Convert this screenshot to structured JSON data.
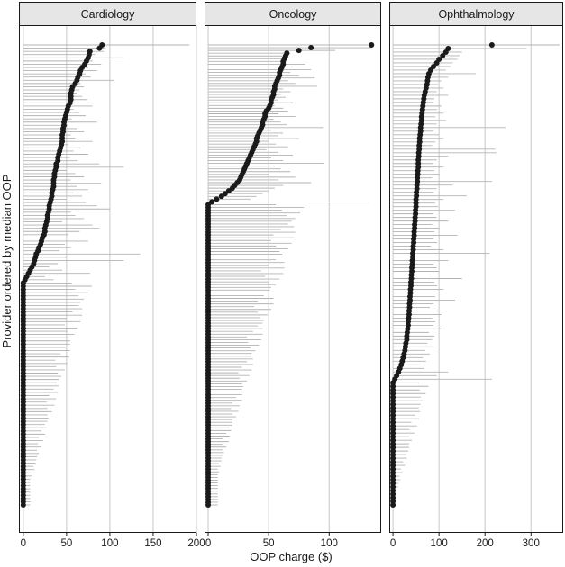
{
  "chart_data": {
    "type": "scatter",
    "ylabel": "Provider ordered by median OOP",
    "xlabel": "OOP charge ($)",
    "grid": true,
    "panels": [
      {
        "title": "Cardiology",
        "xlim": [
          -5,
          200
        ],
        "xticks": [
          0,
          50,
          100,
          150,
          200
        ],
        "n_zero": 70,
        "points": [
          {
            "median": 91,
            "max": 192
          },
          {
            "median": 88,
            "max": 95
          },
          {
            "median": 77,
            "max": 93
          },
          {
            "median": 76,
            "max": 83
          },
          {
            "median": 75,
            "max": 115
          },
          {
            "median": 73,
            "max": 80
          },
          {
            "median": 71,
            "max": 90
          },
          {
            "median": 68,
            "max": 75
          },
          {
            "median": 66,
            "max": 85
          },
          {
            "median": 65,
            "max": 72
          },
          {
            "median": 63,
            "max": 78
          },
          {
            "median": 62,
            "max": 105
          },
          {
            "median": 60,
            "max": 66
          },
          {
            "median": 57,
            "max": 70
          },
          {
            "median": 56,
            "max": 65
          },
          {
            "median": 55,
            "max": 62
          },
          {
            "median": 55,
            "max": 68
          },
          {
            "median": 55,
            "max": 74
          },
          {
            "median": 54,
            "max": 60
          },
          {
            "median": 52,
            "max": 80
          },
          {
            "median": 51,
            "max": 58
          },
          {
            "median": 50,
            "max": 65
          },
          {
            "median": 49,
            "max": 72
          },
          {
            "median": 48,
            "max": 56
          },
          {
            "median": 47,
            "max": 85
          },
          {
            "median": 47,
            "max": 52
          },
          {
            "median": 46,
            "max": 62
          },
          {
            "median": 46,
            "max": 70
          },
          {
            "median": 45,
            "max": 55
          },
          {
            "median": 45,
            "max": 60
          },
          {
            "median": 45,
            "max": 80
          },
          {
            "median": 44,
            "max": 52
          },
          {
            "median": 43,
            "max": 66
          },
          {
            "median": 42,
            "max": 58
          },
          {
            "median": 41,
            "max": 75
          },
          {
            "median": 40,
            "max": 54
          },
          {
            "median": 40,
            "max": 63
          },
          {
            "median": 38,
            "max": 88
          },
          {
            "median": 38,
            "max": 116
          },
          {
            "median": 37,
            "max": 50
          },
          {
            "median": 36,
            "max": 60
          },
          {
            "median": 36,
            "max": 70
          },
          {
            "median": 35,
            "max": 55
          },
          {
            "median": 35,
            "max": 90
          },
          {
            "median": 35,
            "max": 62
          },
          {
            "median": 34,
            "max": 75
          },
          {
            "median": 33,
            "max": 58
          },
          {
            "median": 33,
            "max": 68
          },
          {
            "median": 32,
            "max": 50
          },
          {
            "median": 31,
            "max": 72
          },
          {
            "median": 30,
            "max": 85
          },
          {
            "median": 30,
            "max": 100
          },
          {
            "median": 29,
            "max": 55
          },
          {
            "median": 28,
            "max": 60
          },
          {
            "median": 28,
            "max": 70
          },
          {
            "median": 27,
            "max": 45
          },
          {
            "median": 26,
            "max": 80
          },
          {
            "median": 25,
            "max": 88
          },
          {
            "median": 25,
            "max": 65
          },
          {
            "median": 24,
            "max": 52
          },
          {
            "median": 22,
            "max": 60
          },
          {
            "median": 21,
            "max": 75
          },
          {
            "median": 20,
            "max": 48
          },
          {
            "median": 18,
            "max": 55
          },
          {
            "median": 17,
            "max": 42
          },
          {
            "median": 15,
            "max": 135
          },
          {
            "median": 14,
            "max": 50
          },
          {
            "median": 13,
            "max": 116
          },
          {
            "median": 12,
            "max": 40
          },
          {
            "median": 10,
            "max": 30
          },
          {
            "median": 8,
            "max": 45
          },
          {
            "median": 6,
            "max": 77
          },
          {
            "median": 4,
            "max": 25
          },
          {
            "median": 2,
            "max": 35
          }
        ]
      },
      {
        "title": "Oncology",
        "xlim": [
          -3,
          143
        ],
        "xticks": [
          0,
          50,
          100
        ],
        "n_zero": 110,
        "points": [
          {
            "median": 135,
            "max": 135
          },
          {
            "median": 85,
            "max": 135
          },
          {
            "median": 75,
            "max": 105
          },
          {
            "median": 65,
            "max": 68
          },
          {
            "median": 64,
            "max": 66
          },
          {
            "median": 63,
            "max": 65
          },
          {
            "median": 62,
            "max": 64
          },
          {
            "median": 62,
            "max": 80
          },
          {
            "median": 61,
            "max": 70
          },
          {
            "median": 60,
            "max": 85
          },
          {
            "median": 59,
            "max": 68
          },
          {
            "median": 59,
            "max": 75
          },
          {
            "median": 58,
            "max": 88
          },
          {
            "median": 57,
            "max": 66
          },
          {
            "median": 56,
            "max": 72
          },
          {
            "median": 55,
            "max": 90
          },
          {
            "median": 55,
            "max": 62
          },
          {
            "median": 54,
            "max": 68
          },
          {
            "median": 54,
            "max": 60
          },
          {
            "median": 53,
            "max": 64
          },
          {
            "median": 52,
            "max": 58
          },
          {
            "median": 52,
            "max": 70
          },
          {
            "median": 51,
            "max": 55
          },
          {
            "median": 50,
            "max": 62
          },
          {
            "median": 48,
            "max": 66
          },
          {
            "median": 47,
            "max": 58
          },
          {
            "median": 47,
            "max": 72
          },
          {
            "median": 46,
            "max": 54
          },
          {
            "median": 45,
            "max": 60
          },
          {
            "median": 45,
            "max": 65
          },
          {
            "median": 44,
            "max": 95
          },
          {
            "median": 43,
            "max": 52
          },
          {
            "median": 42,
            "max": 62
          },
          {
            "median": 41,
            "max": 58
          },
          {
            "median": 40,
            "max": 75
          },
          {
            "median": 40,
            "max": 50
          },
          {
            "median": 39,
            "max": 56
          },
          {
            "median": 38,
            "max": 66
          },
          {
            "median": 37,
            "max": 48
          },
          {
            "median": 36,
            "max": 58
          },
          {
            "median": 35,
            "max": 70
          },
          {
            "median": 34,
            "max": 52
          },
          {
            "median": 33,
            "max": 62
          },
          {
            "median": 32,
            "max": 96
          },
          {
            "median": 31,
            "max": 55
          },
          {
            "median": 30,
            "max": 60
          },
          {
            "median": 29,
            "max": 68
          },
          {
            "median": 28,
            "max": 50
          },
          {
            "median": 27,
            "max": 72
          },
          {
            "median": 26,
            "max": 58
          },
          {
            "median": 24,
            "max": 85
          },
          {
            "median": 22,
            "max": 62
          },
          {
            "median": 20,
            "max": 55
          },
          {
            "median": 17,
            "max": 50
          },
          {
            "median": 14,
            "max": 45
          },
          {
            "median": 11,
            "max": 40
          },
          {
            "median": 7,
            "max": 35
          },
          {
            "median": 3,
            "max": 132
          }
        ]
      },
      {
        "title": "Ophthalmology",
        "xlim": [
          -8,
          370
        ],
        "xticks": [
          0,
          100,
          200,
          300
        ],
        "n_zero": 35,
        "points": [
          {
            "median": 215,
            "max": 362
          },
          {
            "median": 120,
            "max": 290
          },
          {
            "median": 115,
            "max": 150
          },
          {
            "median": 108,
            "max": 145
          },
          {
            "median": 100,
            "max": 140
          },
          {
            "median": 95,
            "max": 130
          },
          {
            "median": 88,
            "max": 125
          },
          {
            "median": 82,
            "max": 115
          },
          {
            "median": 78,
            "max": 180
          },
          {
            "median": 76,
            "max": 120
          },
          {
            "median": 75,
            "max": 105
          },
          {
            "median": 74,
            "max": 98
          },
          {
            "median": 72,
            "max": 110
          },
          {
            "median": 70,
            "max": 95
          },
          {
            "median": 68,
            "max": 120
          },
          {
            "median": 67,
            "max": 90
          },
          {
            "median": 66,
            "max": 88
          },
          {
            "median": 65,
            "max": 105
          },
          {
            "median": 64,
            "max": 96
          },
          {
            "median": 63,
            "max": 110
          },
          {
            "median": 62,
            "max": 92
          },
          {
            "median": 62,
            "max": 115
          },
          {
            "median": 61,
            "max": 95
          },
          {
            "median": 60,
            "max": 245
          },
          {
            "median": 60,
            "max": 88
          },
          {
            "median": 59,
            "max": 100
          },
          {
            "median": 58,
            "max": 110
          },
          {
            "median": 58,
            "max": 92
          },
          {
            "median": 57,
            "max": 85
          },
          {
            "median": 57,
            "max": 222
          },
          {
            "median": 56,
            "max": 225
          },
          {
            "median": 56,
            "max": 120
          },
          {
            "median": 55,
            "max": 95
          },
          {
            "median": 55,
            "max": 88
          },
          {
            "median": 55,
            "max": 110
          },
          {
            "median": 54,
            "max": 90
          },
          {
            "median": 54,
            "max": 100
          },
          {
            "median": 53,
            "max": 85
          },
          {
            "median": 53,
            "max": 215
          },
          {
            "median": 52,
            "max": 130
          },
          {
            "median": 52,
            "max": 95
          },
          {
            "median": 51,
            "max": 88
          },
          {
            "median": 51,
            "max": 160
          },
          {
            "median": 50,
            "max": 110
          },
          {
            "median": 50,
            "max": 92
          },
          {
            "median": 50,
            "max": 98
          },
          {
            "median": 49,
            "max": 135
          },
          {
            "median": 49,
            "max": 88
          },
          {
            "median": 48,
            "max": 95
          },
          {
            "median": 48,
            "max": 120
          },
          {
            "median": 47,
            "max": 85
          },
          {
            "median": 47,
            "max": 100
          },
          {
            "median": 46,
            "max": 90
          },
          {
            "median": 46,
            "max": 140
          },
          {
            "median": 45,
            "max": 88
          },
          {
            "median": 45,
            "max": 96
          },
          {
            "median": 44,
            "max": 82
          },
          {
            "median": 44,
            "max": 110
          },
          {
            "median": 43,
            "max": 210
          },
          {
            "median": 43,
            "max": 92
          },
          {
            "median": 42,
            "max": 120
          },
          {
            "median": 42,
            "max": 88
          },
          {
            "median": 41,
            "max": 95
          },
          {
            "median": 41,
            "max": 100
          },
          {
            "median": 40,
            "max": 85
          },
          {
            "median": 40,
            "max": 150
          },
          {
            "median": 39,
            "max": 90
          },
          {
            "median": 39,
            "max": 96
          },
          {
            "median": 38,
            "max": 110
          },
          {
            "median": 38,
            "max": 88
          },
          {
            "median": 37,
            "max": 92
          },
          {
            "median": 37,
            "max": 135
          },
          {
            "median": 36,
            "max": 88
          },
          {
            "median": 36,
            "max": 80
          },
          {
            "median": 35,
            "max": 98
          },
          {
            "median": 35,
            "max": 105
          },
          {
            "median": 34,
            "max": 85
          },
          {
            "median": 33,
            "max": 92
          },
          {
            "median": 33,
            "max": 88
          },
          {
            "median": 32,
            "max": 105
          },
          {
            "median": 31,
            "max": 78
          },
          {
            "median": 30,
            "max": 90
          },
          {
            "median": 30,
            "max": 85
          },
          {
            "median": 28,
            "max": 75
          },
          {
            "median": 27,
            "max": 88
          },
          {
            "median": 26,
            "max": 70
          },
          {
            "median": 24,
            "max": 80
          },
          {
            "median": 22,
            "max": 65
          },
          {
            "median": 20,
            "max": 72
          },
          {
            "median": 18,
            "max": 60
          },
          {
            "median": 15,
            "max": 68
          },
          {
            "median": 12,
            "max": 120
          },
          {
            "median": 8,
            "max": 95
          },
          {
            "median": 4,
            "max": 215
          }
        ]
      }
    ]
  }
}
